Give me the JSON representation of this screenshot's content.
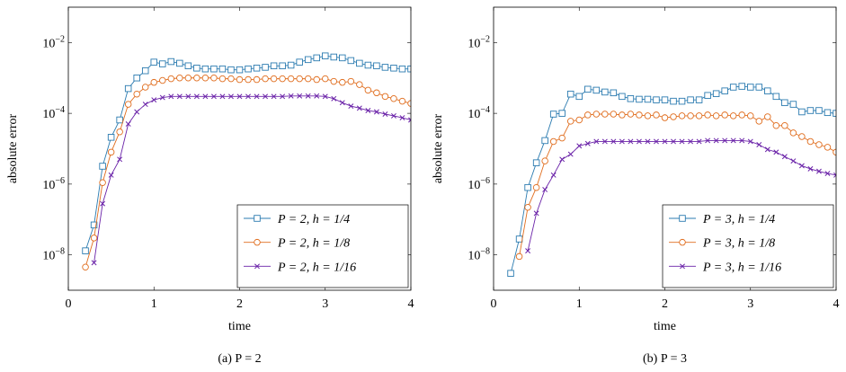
{
  "chart_data": [
    {
      "type": "line",
      "title": "(a) P = 2",
      "xlabel": "time",
      "ylabel": "absolute error",
      "log_y": true,
      "legend": "lower right",
      "xlim": [
        0,
        4
      ],
      "xticks": [
        0,
        1,
        2,
        3,
        4
      ],
      "ylim": [
        1e-09,
        0.1
      ],
      "yticks": [
        {
          "value": 1e-08,
          "label": "10−8"
        },
        {
          "value": 1e-06,
          "label": "10−6"
        },
        {
          "value": 0.0001,
          "label": "10−4"
        },
        {
          "value": 0.01,
          "label": "10−2"
        }
      ],
      "x": [
        0.2,
        0.3,
        0.4,
        0.5,
        0.6,
        0.7,
        0.8,
        0.9,
        1.0,
        1.1,
        1.2,
        1.3,
        1.4,
        1.5,
        1.6,
        1.7,
        1.8,
        1.9,
        2.0,
        2.1,
        2.2,
        2.3,
        2.4,
        2.5,
        2.6,
        2.7,
        2.8,
        2.9,
        3.0,
        3.1,
        3.2,
        3.3,
        3.4,
        3.5,
        3.6,
        3.7,
        3.8,
        3.9,
        4.0
      ],
      "series": [
        {
          "name": "P = 2, h = 1/4",
          "color": "#2b7bb0",
          "marker": "square",
          "values": [
            1.3e-08,
            7e-08,
            3.2e-06,
            2.1e-05,
            6.5e-05,
            0.0005,
            0.001,
            0.0016,
            0.0028,
            0.0025,
            0.0029,
            0.0026,
            0.0022,
            0.0019,
            0.0018,
            0.0018,
            0.0018,
            0.0017,
            0.0017,
            0.0018,
            0.0019,
            0.002,
            0.0022,
            0.0022,
            0.0023,
            0.0028,
            0.0033,
            0.0037,
            0.0042,
            0.0039,
            0.0037,
            0.0031,
            0.0026,
            0.0023,
            0.0022,
            0.002,
            0.0019,
            0.0018,
            0.0018
          ]
        },
        {
          "name": "P = 2, h = 1/8",
          "color": "#e06d1e",
          "marker": "circle",
          "values": [
            4.5e-09,
            3e-08,
            1.1e-06,
            8e-06,
            3e-05,
            0.00018,
            0.00035,
            0.00055,
            0.00075,
            0.00085,
            0.00095,
            0.001,
            0.001,
            0.001,
            0.001,
            0.001,
            0.00095,
            0.00095,
            0.0009,
            0.0009,
            0.0009,
            0.00095,
            0.00095,
            0.00095,
            0.00095,
            0.00095,
            0.00095,
            0.0009,
            0.00095,
            0.0008,
            0.00075,
            0.0008,
            0.00065,
            0.00045,
            0.00038,
            0.0003,
            0.00026,
            0.00022,
            0.00019
          ]
        },
        {
          "name": "P = 2, h = 1/16",
          "color": "#6a22a8",
          "marker": "cross",
          "values": [
            null,
            6e-09,
            2.8e-07,
            1.8e-06,
            5e-06,
            5e-05,
            0.00011,
            0.00018,
            0.00024,
            0.00028,
            0.0003,
            0.0003,
            0.0003,
            0.0003,
            0.0003,
            0.0003,
            0.0003,
            0.0003,
            0.0003,
            0.0003,
            0.0003,
            0.0003,
            0.0003,
            0.0003,
            0.00031,
            0.00031,
            0.00031,
            0.00031,
            0.0003,
            0.00026,
            0.0002,
            0.00016,
            0.00014,
            0.00012,
            0.00011,
            9.5e-05,
            8.5e-05,
            7.5e-05,
            6.5e-05
          ]
        }
      ]
    },
    {
      "type": "line",
      "title": "(b) P = 3",
      "xlabel": "time",
      "ylabel": "absolute error",
      "log_y": true,
      "legend": "lower right",
      "xlim": [
        0,
        4
      ],
      "xticks": [
        0,
        1,
        2,
        3,
        4
      ],
      "ylim": [
        1e-09,
        0.1
      ],
      "yticks": [
        {
          "value": 1e-08,
          "label": "10−8"
        },
        {
          "value": 1e-06,
          "label": "10−6"
        },
        {
          "value": 0.0001,
          "label": "10−4"
        },
        {
          "value": 0.01,
          "label": "10−2"
        }
      ],
      "x": [
        0.2,
        0.3,
        0.4,
        0.5,
        0.6,
        0.7,
        0.8,
        0.9,
        1.0,
        1.1,
        1.2,
        1.3,
        1.4,
        1.5,
        1.6,
        1.7,
        1.8,
        1.9,
        2.0,
        2.1,
        2.2,
        2.3,
        2.4,
        2.5,
        2.6,
        2.7,
        2.8,
        2.9,
        3.0,
        3.1,
        3.2,
        3.3,
        3.4,
        3.5,
        3.6,
        3.7,
        3.8,
        3.9,
        4.0
      ],
      "series": [
        {
          "name": "P = 3, h = 1/4",
          "color": "#2b7bb0",
          "marker": "square",
          "values": [
            3e-09,
            2.8e-08,
            8e-07,
            4e-06,
            1.7e-05,
            9.5e-05,
            0.0001,
            0.00035,
            0.0003,
            0.00048,
            0.00045,
            0.0004,
            0.00038,
            0.0003,
            0.00026,
            0.00025,
            0.00025,
            0.00024,
            0.00024,
            0.00022,
            0.00022,
            0.00024,
            0.00024,
            0.00032,
            0.00036,
            0.00043,
            0.00055,
            0.00058,
            0.00055,
            0.00055,
            0.00043,
            0.0003,
            0.0002,
            0.00018,
            0.00011,
            0.00012,
            0.00012,
            0.000105,
            0.0001
          ]
        },
        {
          "name": "P = 3, h = 1/8",
          "color": "#e06d1e",
          "marker": "circle",
          "values": [
            null,
            9e-09,
            2.2e-07,
            8e-07,
            4.5e-06,
            1.6e-05,
            2e-05,
            6e-05,
            6.5e-05,
            9e-05,
            9.5e-05,
            9.5e-05,
            9.5e-05,
            9e-05,
            9.5e-05,
            9e-05,
            8.5e-05,
            9e-05,
            7.5e-05,
            8e-05,
            8.5e-05,
            8.5e-05,
            8.5e-05,
            9e-05,
            8.5e-05,
            9e-05,
            8.5e-05,
            9e-05,
            8.5e-05,
            6e-05,
            8e-05,
            4.5e-05,
            4.5e-05,
            2.8e-05,
            2.2e-05,
            1.6e-05,
            1.3e-05,
            1.1e-05,
            8e-06
          ]
        },
        {
          "name": "P = 3, h = 1/16",
          "color": "#6a22a8",
          "marker": "cross",
          "values": [
            null,
            null,
            1.3e-08,
            1.5e-07,
            7e-07,
            1.8e-06,
            5e-06,
            7e-06,
            1.2e-05,
            1.4e-05,
            1.6e-05,
            1.6e-05,
            1.6e-05,
            1.6e-05,
            1.6e-05,
            1.6e-05,
            1.6e-05,
            1.6e-05,
            1.6e-05,
            1.6e-05,
            1.6e-05,
            1.6e-05,
            1.6e-05,
            1.7e-05,
            1.7e-05,
            1.7e-05,
            1.7e-05,
            1.7e-05,
            1.6e-05,
            1.3e-05,
            9.5e-06,
            8e-06,
            6e-06,
            4.5e-06,
            3.3e-06,
            2.7e-06,
            2.3e-06,
            2e-06,
            1.8e-06
          ]
        }
      ]
    }
  ]
}
